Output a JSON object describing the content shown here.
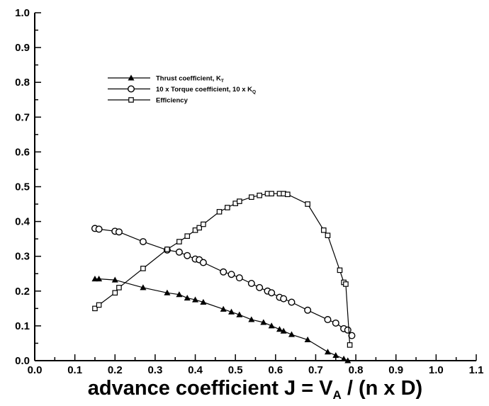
{
  "chart_data": {
    "type": "line",
    "title": "",
    "xlabel": "advance coefficient J = V_A / (n x D)",
    "xlabel_parts": {
      "prefix": "advance coefficient J = V",
      "sub": "A",
      "suffix": " / (n x D)"
    },
    "ylabel": "",
    "xlim": [
      0.0,
      1.1
    ],
    "ylim": [
      0.0,
      1.0
    ],
    "x_ticks": [
      "0.0",
      "0.1",
      "0.2",
      "0.3",
      "0.4",
      "0.5",
      "0.6",
      "0.7",
      "0.8",
      "0.9",
      "1.0",
      "1.1"
    ],
    "y_ticks": [
      "0.0",
      "0.1",
      "0.2",
      "0.3",
      "0.4",
      "0.5",
      "0.6",
      "0.7",
      "0.8",
      "0.9",
      "1.0"
    ],
    "grid": false,
    "legend_position": "top-left",
    "series": [
      {
        "name": "Thrust coefficient, K_T",
        "name_parts": {
          "main": "Thrust coefficient, K",
          "sub": "T"
        },
        "marker": "triangle",
        "x": [
          0.15,
          0.16,
          0.2,
          0.27,
          0.33,
          0.36,
          0.38,
          0.4,
          0.42,
          0.47,
          0.49,
          0.51,
          0.54,
          0.57,
          0.59,
          0.61,
          0.62,
          0.64,
          0.68,
          0.73,
          0.75,
          0.77,
          0.78
        ],
        "y": [
          0.235,
          0.235,
          0.232,
          0.21,
          0.195,
          0.19,
          0.18,
          0.175,
          0.168,
          0.148,
          0.14,
          0.132,
          0.118,
          0.11,
          0.1,
          0.09,
          0.085,
          0.075,
          0.06,
          0.025,
          0.015,
          0.005,
          0.0
        ]
      },
      {
        "name": "10 x Torque coefficient, 10 x K_Q",
        "name_parts": {
          "main": "10 x Torque coefficient, 10 x K",
          "sub": "Q"
        },
        "marker": "circle",
        "x": [
          0.15,
          0.16,
          0.2,
          0.21,
          0.27,
          0.33,
          0.36,
          0.38,
          0.4,
          0.41,
          0.42,
          0.47,
          0.49,
          0.51,
          0.54,
          0.56,
          0.58,
          0.59,
          0.61,
          0.62,
          0.64,
          0.68,
          0.73,
          0.75,
          0.77,
          0.78,
          0.79
        ],
        "y": [
          0.38,
          0.378,
          0.372,
          0.37,
          0.342,
          0.318,
          0.312,
          0.302,
          0.292,
          0.29,
          0.282,
          0.255,
          0.248,
          0.238,
          0.222,
          0.21,
          0.2,
          0.195,
          0.182,
          0.178,
          0.168,
          0.145,
          0.118,
          0.108,
          0.092,
          0.088,
          0.072
        ]
      },
      {
        "name": "Efficiency",
        "name_parts": {
          "main": "Efficiency",
          "sub": ""
        },
        "marker": "square",
        "x": [
          0.15,
          0.16,
          0.2,
          0.21,
          0.27,
          0.33,
          0.36,
          0.38,
          0.4,
          0.41,
          0.42,
          0.46,
          0.48,
          0.5,
          0.51,
          0.54,
          0.56,
          0.58,
          0.59,
          0.61,
          0.62,
          0.63,
          0.68,
          0.72,
          0.73,
          0.76,
          0.77,
          0.775,
          0.785
        ],
        "y": [
          0.15,
          0.16,
          0.195,
          0.21,
          0.265,
          0.32,
          0.342,
          0.358,
          0.375,
          0.382,
          0.392,
          0.428,
          0.44,
          0.452,
          0.458,
          0.47,
          0.475,
          0.48,
          0.48,
          0.48,
          0.48,
          0.478,
          0.45,
          0.375,
          0.36,
          0.26,
          0.225,
          0.22,
          0.045
        ]
      }
    ]
  }
}
